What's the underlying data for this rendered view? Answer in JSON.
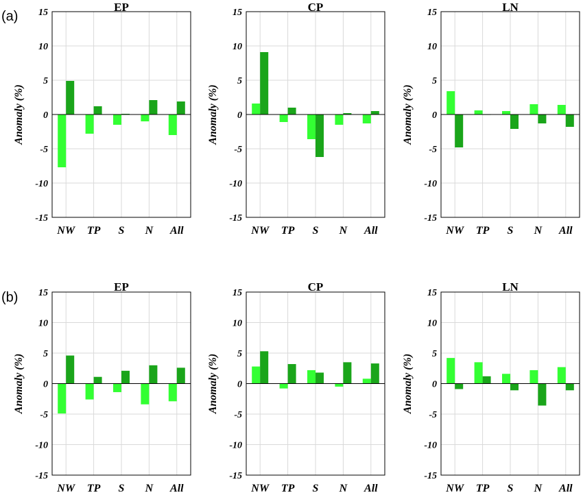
{
  "rows": [
    {
      "label": "(a)"
    },
    {
      "label": "(b)"
    }
  ],
  "colors": {
    "series1": "#33ff33",
    "series2": "#1aa51a"
  },
  "chart_data": [
    {
      "type": "bar",
      "row": 0,
      "title": "EP",
      "ylabel": "Anomaly (%)",
      "ylim": [
        -15,
        15
      ],
      "yticks": [
        -15,
        -10,
        -5,
        0,
        5,
        10,
        15
      ],
      "grid": true,
      "categories": [
        "NW",
        "TP",
        "S",
        "N",
        "All"
      ],
      "series": [
        {
          "values": [
            -7.7,
            -2.8,
            -1.5,
            -1.0,
            -3.0
          ]
        },
        {
          "values": [
            4.9,
            1.2,
            0.1,
            2.1,
            1.9
          ]
        }
      ]
    },
    {
      "type": "bar",
      "row": 0,
      "title": "CP",
      "ylabel": "Anomaly (%)",
      "ylim": [
        -15,
        15
      ],
      "yticks": [
        -15,
        -10,
        -5,
        0,
        5,
        10,
        15
      ],
      "grid": true,
      "categories": [
        "NW",
        "TP",
        "S",
        "N",
        "All"
      ],
      "series": [
        {
          "values": [
            1.6,
            -1.1,
            -3.6,
            -1.5,
            -1.3
          ]
        },
        {
          "values": [
            9.1,
            1.0,
            -6.2,
            0.2,
            0.5
          ]
        }
      ]
    },
    {
      "type": "bar",
      "row": 0,
      "title": "LN",
      "ylabel": "Anomaly (%)",
      "ylim": [
        -15,
        15
      ],
      "yticks": [
        -15,
        -10,
        -5,
        0,
        5,
        10,
        15
      ],
      "grid": true,
      "categories": [
        "NW",
        "TP",
        "S",
        "N",
        "All"
      ],
      "series": [
        {
          "values": [
            3.4,
            0.6,
            0.5,
            1.5,
            1.4
          ]
        },
        {
          "values": [
            -4.8,
            0.0,
            -2.1,
            -1.3,
            -1.8
          ]
        }
      ]
    },
    {
      "type": "bar",
      "row": 1,
      "title": "EP",
      "ylabel": "Anomaly (%)",
      "ylim": [
        -15,
        15
      ],
      "yticks": [
        -15,
        -10,
        -5,
        0,
        5,
        10,
        15
      ],
      "grid": true,
      "categories": [
        "NW",
        "TP",
        "S",
        "N",
        "All"
      ],
      "series": [
        {
          "values": [
            -4.9,
            -2.6,
            -1.4,
            -3.4,
            -2.9
          ]
        },
        {
          "values": [
            4.6,
            1.1,
            2.1,
            3.0,
            2.6
          ]
        }
      ]
    },
    {
      "type": "bar",
      "row": 1,
      "title": "CP",
      "ylabel": "Anomaly (%)",
      "ylim": [
        -15,
        15
      ],
      "yticks": [
        -15,
        -10,
        -5,
        0,
        5,
        10,
        15
      ],
      "grid": true,
      "categories": [
        "NW",
        "TP",
        "S",
        "N",
        "All"
      ],
      "series": [
        {
          "values": [
            2.8,
            -0.8,
            2.2,
            -0.5,
            0.8
          ]
        },
        {
          "values": [
            5.3,
            3.2,
            1.8,
            3.5,
            3.3
          ]
        }
      ]
    },
    {
      "type": "bar",
      "row": 1,
      "title": "LN",
      "ylabel": "Anomaly (%)",
      "ylim": [
        -15,
        15
      ],
      "yticks": [
        -15,
        -10,
        -5,
        0,
        5,
        10,
        15
      ],
      "grid": true,
      "categories": [
        "NW",
        "TP",
        "S",
        "N",
        "All"
      ],
      "series": [
        {
          "values": [
            4.2,
            3.5,
            1.6,
            2.2,
            2.7
          ]
        },
        {
          "values": [
            -0.9,
            1.2,
            -1.1,
            -3.6,
            -1.1
          ]
        }
      ]
    }
  ]
}
